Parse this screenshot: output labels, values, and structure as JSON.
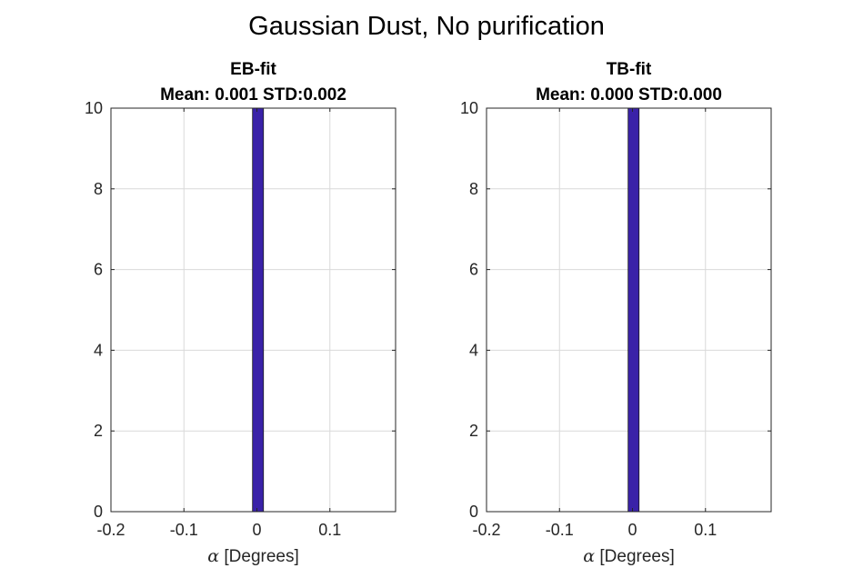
{
  "figure_title": "Gaussian Dust, No purification",
  "colors": {
    "bar": "#3a22a8",
    "bar_edge": "#1a1a1a",
    "grid": "#d9d9d9",
    "axis": "#262626"
  },
  "chart_data": [
    {
      "type": "bar",
      "title": "EB-fit",
      "subtitle": "Mean: 0.001 STD:0.002",
      "xlabel_symbol": "α",
      "xlabel_text": " [Degrees]",
      "xlim": [
        -0.2,
        0.19
      ],
      "ylim": [
        0,
        10
      ],
      "xticks": [
        -0.2,
        -0.1,
        0,
        0.1
      ],
      "xtick_labels": [
        "-0.2",
        "-0.1",
        "0",
        "0.1"
      ],
      "yticks": [
        0,
        2,
        4,
        6,
        8,
        10
      ],
      "ytick_labels": [
        "0",
        "2",
        "4",
        "6",
        "8",
        "10"
      ],
      "grid": true,
      "bars": [
        {
          "x_start": -0.006,
          "x_end": 0.009,
          "count": 10
        }
      ]
    },
    {
      "type": "bar",
      "title": "TB-fit",
      "subtitle": "Mean: 0.000 STD:0.000",
      "xlabel_symbol": "α",
      "xlabel_text": " [Degrees]",
      "xlim": [
        -0.2,
        0.19
      ],
      "ylim": [
        0,
        10
      ],
      "xticks": [
        -0.2,
        -0.1,
        0,
        0.1
      ],
      "xtick_labels": [
        "-0.2",
        "-0.1",
        "0",
        "0.1"
      ],
      "yticks": [
        0,
        2,
        4,
        6,
        8,
        10
      ],
      "ytick_labels": [
        "0",
        "2",
        "4",
        "6",
        "8",
        "10"
      ],
      "grid": true,
      "bars": [
        {
          "x_start": -0.006,
          "x_end": 0.009,
          "count": 10
        }
      ]
    }
  ]
}
